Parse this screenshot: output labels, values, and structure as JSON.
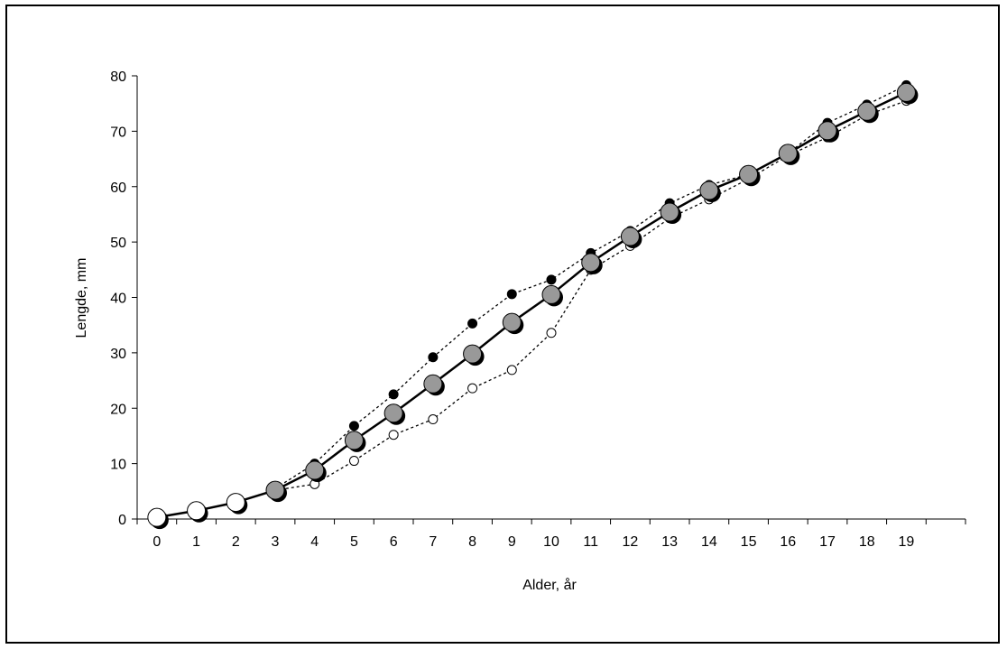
{
  "chart_data": {
    "type": "line",
    "title": "",
    "xlabel": "Alder, år",
    "ylabel": "Lengde, mm",
    "x": [
      0,
      1,
      2,
      3,
      4,
      5,
      6,
      7,
      8,
      9,
      10,
      11,
      12,
      13,
      14,
      15,
      16,
      17,
      18,
      19
    ],
    "xlim": [
      -0.5,
      20.5
    ],
    "ylim": [
      0,
      80
    ],
    "yticks": [
      0,
      10,
      20,
      30,
      40,
      50,
      60,
      70,
      80
    ],
    "xticks": [
      "0",
      "1",
      "2",
      "3",
      "4",
      "5",
      "6",
      "7",
      "8",
      "9",
      "10",
      "11",
      "12",
      "13",
      "14",
      "15",
      "16",
      "17",
      "18",
      "19"
    ],
    "grid": false,
    "legend": "none",
    "series": [
      {
        "style": "upper-dotted-small-black",
        "x": [
          3,
          4,
          5,
          6,
          7,
          8,
          9,
          10,
          11,
          12,
          13,
          14,
          15,
          16,
          17,
          18,
          19
        ],
        "values": [
          5.5,
          10,
          16.8,
          22.5,
          29.2,
          35.3,
          40.6,
          43.2,
          48,
          52,
          57,
          60.3,
          62.2,
          66,
          71.5,
          74.8,
          78.3
        ]
      },
      {
        "style": "lower-dotted-small-white",
        "x": [
          3,
          4,
          5,
          6,
          7,
          8,
          9,
          10,
          11,
          12,
          13,
          14,
          15,
          16,
          17,
          18,
          19
        ],
        "values": [
          5.2,
          6.3,
          10.5,
          15.2,
          18,
          23.6,
          26.9,
          33.6,
          45,
          49.3,
          54.3,
          57.7,
          61.4,
          65.6,
          68.9,
          72.9,
          75.5
        ]
      },
      {
        "style": "mean-solid-large",
        "x": [
          0,
          1,
          2,
          3,
          4,
          5,
          6,
          7,
          8,
          9,
          10,
          11,
          12,
          13,
          14,
          15,
          16,
          17,
          18,
          19
        ],
        "values": [
          0.3,
          1.5,
          3,
          5.2,
          8.8,
          14.2,
          19.1,
          24.4,
          29.8,
          35.5,
          40.5,
          46.3,
          51,
          55.4,
          59.3,
          62.2,
          66,
          70.1,
          73.6,
          77
        ]
      }
    ],
    "colors": {
      "mean_fill": "#999999",
      "early_fill": "#ffffff",
      "shadow": "#000000"
    }
  }
}
